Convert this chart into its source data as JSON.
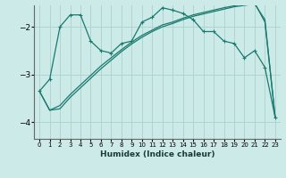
{
  "xlabel": "Humidex (Indice chaleur)",
  "bg_color": "#cceae8",
  "grid_color": "#b0d4d2",
  "line_color": "#1a7a6e",
  "x_ticks": [
    0,
    1,
    2,
    3,
    4,
    5,
    6,
    7,
    8,
    9,
    10,
    11,
    12,
    13,
    14,
    15,
    16,
    17,
    18,
    19,
    20,
    21,
    22,
    23
  ],
  "ylim": [
    -4.35,
    -1.55
  ],
  "xlim": [
    -0.5,
    23.5
  ],
  "yticks": [
    -4,
    -3,
    -2
  ],
  "series1_x": [
    0,
    1,
    2,
    3,
    4,
    5,
    6,
    7,
    8,
    9,
    10,
    11,
    12,
    13,
    14,
    15,
    16,
    17,
    18,
    19,
    20,
    21,
    22,
    23
  ],
  "series1_y": [
    -3.35,
    -3.1,
    -2.0,
    -1.75,
    -1.75,
    -2.3,
    -2.5,
    -2.55,
    -2.35,
    -2.3,
    -1.9,
    -1.8,
    -1.6,
    -1.65,
    -1.72,
    -1.85,
    -2.1,
    -2.1,
    -2.3,
    -2.35,
    -2.65,
    -2.5,
    -2.85,
    -3.9
  ],
  "series2_x": [
    0,
    1,
    2,
    3,
    4,
    5,
    6,
    7,
    8,
    9,
    10,
    11,
    12,
    13,
    14,
    15,
    16,
    17,
    18,
    19,
    20,
    21,
    22,
    23
  ],
  "series2_y": [
    -3.35,
    -3.75,
    -3.72,
    -3.48,
    -3.28,
    -3.08,
    -2.88,
    -2.7,
    -2.52,
    -2.36,
    -2.22,
    -2.1,
    -2.0,
    -1.93,
    -1.85,
    -1.78,
    -1.73,
    -1.68,
    -1.63,
    -1.58,
    -1.55,
    -1.52,
    -1.85,
    -3.9
  ],
  "series3_x": [
    0,
    1,
    2,
    3,
    4,
    5,
    6,
    7,
    8,
    9,
    10,
    11,
    12,
    13,
    14,
    15,
    16,
    17,
    18,
    19,
    20,
    21,
    22,
    23
  ],
  "series3_y": [
    -3.35,
    -3.75,
    -3.65,
    -3.42,
    -3.22,
    -3.02,
    -2.82,
    -2.65,
    -2.48,
    -2.32,
    -2.18,
    -2.07,
    -1.96,
    -1.9,
    -1.82,
    -1.75,
    -1.7,
    -1.65,
    -1.6,
    -1.56,
    -1.52,
    -1.5,
    -1.9,
    -3.9
  ]
}
